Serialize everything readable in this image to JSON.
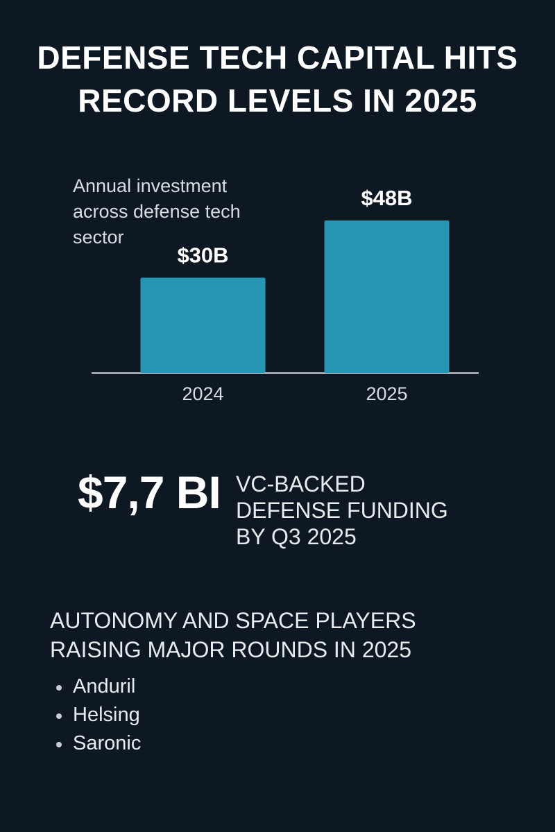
{
  "header": {
    "title": "DEFENSE TECH CAPITAL HITS RECORD LEVELS IN 2025"
  },
  "chart_data": {
    "type": "bar",
    "subtitle": "Annual investment across defense tech sector",
    "categories": [
      "2024",
      "2025"
    ],
    "values": [
      30,
      48
    ],
    "value_labels": [
      "$30B",
      "$48B"
    ],
    "color": "#2596b4"
  },
  "stat": {
    "value": "$7,7 BI",
    "label": "VC-BACKED DEFENSE FUNDING BY Q3 2025"
  },
  "list": {
    "heading": "AUTONOMY AND SPACE PLAYERS RAISING MAJOR ROUNDS IN 2025",
    "items": [
      "Anduril",
      "Helsing",
      "Saronic"
    ]
  }
}
